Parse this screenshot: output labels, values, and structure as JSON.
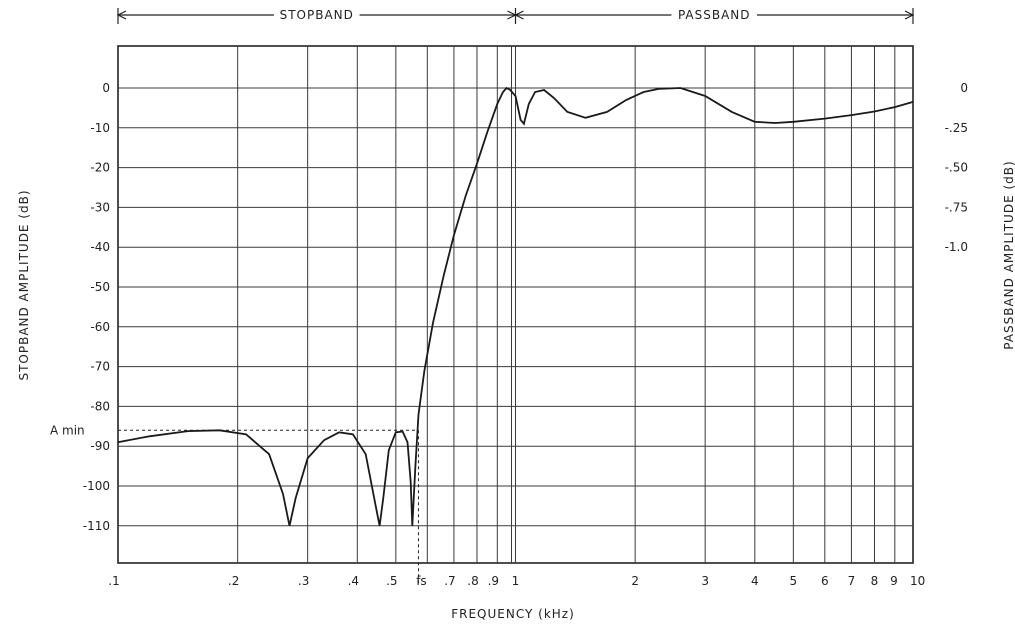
{
  "chart_data": {
    "type": "line",
    "xscale": "log",
    "xlabel": "FREQUENCY (kHz)",
    "ylabel_left": "STOPBAND AMPLITUDE (dB)",
    "ylabel_right": "PASSBAND AMPLITUDE (dB)",
    "xlim": [
      0.1,
      10
    ],
    "ylim_left": [
      -120,
      10
    ],
    "x_tick_labels": [
      {
        "x": 0.1,
        "label": ".1"
      },
      {
        "x": 0.2,
        "label": ".2"
      },
      {
        "x": 0.3,
        "label": ".3"
      },
      {
        "x": 0.4,
        "label": ".4"
      },
      {
        "x": 0.5,
        "label": ".5"
      },
      {
        "x": 0.57,
        "label": "fs"
      },
      {
        "x": 0.7,
        "label": ".7"
      },
      {
        "x": 0.8,
        "label": ".8"
      },
      {
        "x": 0.9,
        "label": ".9"
      },
      {
        "x": 1,
        "label": "1"
      },
      {
        "x": 2,
        "label": "2"
      },
      {
        "x": 3,
        "label": "3"
      },
      {
        "x": 4,
        "label": "4"
      },
      {
        "x": 5,
        "label": "5"
      },
      {
        "x": 6,
        "label": "6"
      },
      {
        "x": 7,
        "label": "7"
      },
      {
        "x": 8,
        "label": "8"
      },
      {
        "x": 9,
        "label": "9"
      },
      {
        "x": 10,
        "label": "10"
      }
    ],
    "y_left_tick_labels": [
      {
        "y": 0,
        "label": "0"
      },
      {
        "y": -10,
        "label": "-10"
      },
      {
        "y": -20,
        "label": "-20"
      },
      {
        "y": -30,
        "label": "-30"
      },
      {
        "y": -40,
        "label": "-40"
      },
      {
        "y": -50,
        "label": "-50"
      },
      {
        "y": -60,
        "label": "-60"
      },
      {
        "y": -70,
        "label": "-70"
      },
      {
        "y": -80,
        "label": "-80"
      },
      {
        "y": -90,
        "label": "-90"
      },
      {
        "y": -100,
        "label": "-100"
      },
      {
        "y": -110,
        "label": "-110"
      }
    ],
    "y_right_tick_labels": [
      {
        "y": 0,
        "label": "0"
      },
      {
        "y": -10,
        "label": "-.25"
      },
      {
        "y": -20,
        "label": "-.50"
      },
      {
        "y": -30,
        "label": "-.75"
      },
      {
        "y": -40,
        "label": "-1.0"
      }
    ],
    "bands": [
      {
        "label": "STOPBAND",
        "from": 0.1,
        "to": 1
      },
      {
        "label": "PASSBAND",
        "from": 1,
        "to": 10
      }
    ],
    "annotations": {
      "amin_label": "A min",
      "amin_level": -86,
      "fs_frequency": 0.57
    },
    "series": [
      {
        "x": [
          0.1,
          0.12,
          0.15,
          0.18,
          0.21,
          0.24,
          0.26,
          0.27,
          0.28,
          0.3,
          0.33,
          0.36,
          0.39,
          0.42,
          0.445,
          0.455,
          0.465,
          0.48,
          0.5,
          0.52,
          0.535,
          0.545,
          0.55,
          0.56,
          0.57,
          0.59,
          0.62,
          0.66,
          0.7,
          0.75,
          0.8,
          0.85,
          0.9,
          0.93,
          0.95,
          0.97,
          1.0,
          1.03,
          1.05,
          1.08,
          1.12,
          1.18,
          1.25,
          1.35,
          1.5,
          1.7,
          1.9,
          2.1,
          2.3,
          2.6,
          3.0,
          3.5,
          4.0,
          4.5,
          5.0,
          6.0,
          7.0,
          8.0,
          9.0,
          10.0
        ],
        "y": [
          -89,
          -87.5,
          -86.2,
          -86,
          -87,
          -92,
          -102,
          -110,
          -103,
          -93,
          -88.5,
          -86.5,
          -87,
          -92,
          -105,
          -110,
          -103,
          -91,
          -86.5,
          -86.3,
          -89,
          -99,
          -110,
          -95,
          -82,
          -71,
          -59,
          -47,
          -37,
          -27,
          -19,
          -11,
          -4,
          -1,
          0,
          -0.5,
          -2,
          -8,
          -9,
          -4,
          -1,
          -0.5,
          -2.5,
          -6,
          -7.5,
          -6,
          -3,
          -1,
          -0.2,
          0,
          -2,
          -6,
          -8.5,
          -8.8,
          -8.5,
          -7.7,
          -6.8,
          -5.9,
          -4.8,
          -3.5
        ]
      }
    ]
  }
}
